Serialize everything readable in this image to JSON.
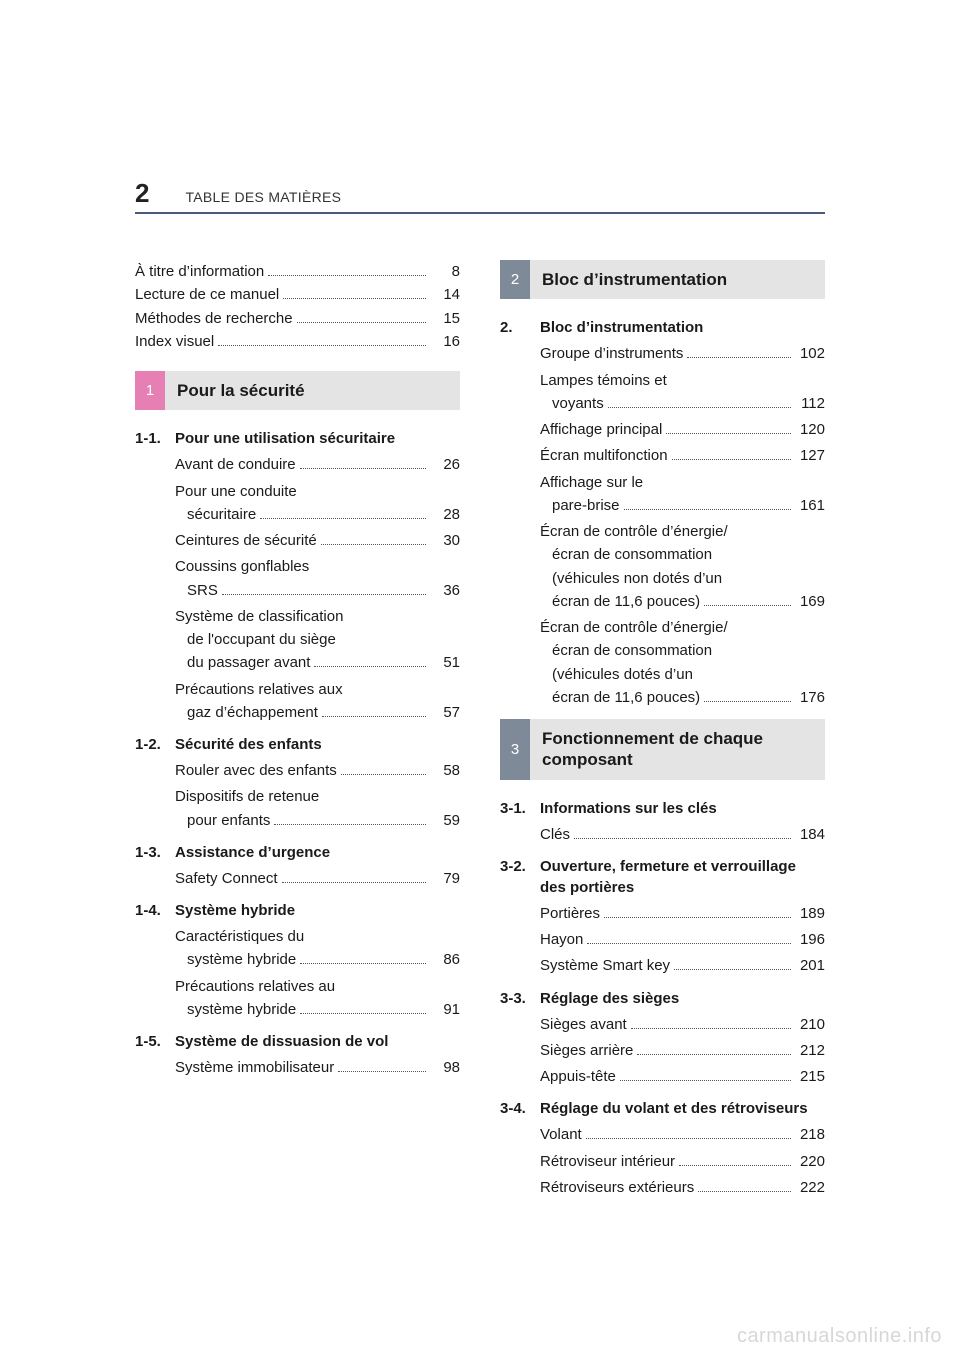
{
  "page_number": "2",
  "header_title": "TABLE DES MATIÈRES",
  "watermark": "carmanualsonline.info",
  "colors": {
    "rule": "#4b5c7b",
    "part1_tab": "#e67fb3",
    "part_other_tab": "#7f8a98",
    "part_bg": "#e4e4e4",
    "watermark": "#d7d7d7"
  },
  "intro_lines": [
    {
      "label": "À titre d’information",
      "page": "8"
    },
    {
      "label": "Lecture de ce manuel",
      "page": "14"
    },
    {
      "label": "Méthodes de recherche",
      "page": "15"
    },
    {
      "label": "Index visuel",
      "page": "16"
    }
  ],
  "left_parts": [
    {
      "num": "1",
      "title": "Pour la sécurité",
      "tab_class": "c1",
      "sections": [
        {
          "num": "1-1.",
          "title": "Pour une utilisation sécuritaire",
          "entries": [
            {
              "lines": [
                "Avant de conduire"
              ],
              "page": "26"
            },
            {
              "lines": [
                "Pour une conduite",
                "sécuritaire"
              ],
              "page": "28"
            },
            {
              "lines": [
                "Ceintures de sécurité"
              ],
              "page": "30"
            },
            {
              "lines": [
                "Coussins gonflables",
                "SRS"
              ],
              "page": "36"
            },
            {
              "lines": [
                "Système de classification",
                "de l'occupant du siège",
                "du passager avant"
              ],
              "page": "51"
            },
            {
              "lines": [
                "Précautions relatives aux",
                "gaz d’échappement"
              ],
              "page": "57"
            }
          ]
        },
        {
          "num": "1-2.",
          "title": "Sécurité des enfants",
          "entries": [
            {
              "lines": [
                "Rouler avec des enfants"
              ],
              "page": "58"
            },
            {
              "lines": [
                "Dispositifs de retenue",
                "pour enfants"
              ],
              "page": "59"
            }
          ]
        },
        {
          "num": "1-3.",
          "title": "Assistance d’urgence",
          "entries": [
            {
              "lines": [
                "Safety Connect"
              ],
              "page": "79"
            }
          ]
        },
        {
          "num": "1-4.",
          "title": "Système hybride",
          "entries": [
            {
              "lines": [
                "Caractéristiques du",
                "système hybride"
              ],
              "page": "86"
            },
            {
              "lines": [
                "Précautions relatives au",
                "système hybride"
              ],
              "page": "91"
            }
          ]
        },
        {
          "num": "1-5.",
          "title": "Système de dissuasion de vol",
          "entries": [
            {
              "lines": [
                "Système immobilisateur"
              ],
              "page": "98"
            }
          ]
        }
      ]
    }
  ],
  "right_parts": [
    {
      "num": "2",
      "title": "Bloc d’instrumentation",
      "tab_class": "c2",
      "sections": [
        {
          "num": "2.",
          "title": "Bloc d’instrumentation",
          "entries": [
            {
              "lines": [
                "Groupe d’instruments"
              ],
              "page": "102"
            },
            {
              "lines": [
                "Lampes témoins et",
                "voyants"
              ],
              "page": "112"
            },
            {
              "lines": [
                "Affichage principal"
              ],
              "page": "120"
            },
            {
              "lines": [
                "Écran multifonction"
              ],
              "page": "127"
            },
            {
              "lines": [
                "Affichage sur le",
                "pare-brise"
              ],
              "page": "161"
            },
            {
              "lines": [
                "Écran de contrôle d’énergie/",
                "écran de consommation",
                "(véhicules non dotés d’un",
                "écran de 11,6 pouces)"
              ],
              "page": "169"
            },
            {
              "lines": [
                "Écran de contrôle d’énergie/",
                "écran de consommation",
                "(véhicules dotés d’un",
                "écran de 11,6 pouces)"
              ],
              "page": "176"
            }
          ]
        }
      ]
    },
    {
      "num": "3",
      "title": "Fonctionnement de chaque composant",
      "tab_class": "c3",
      "sections": [
        {
          "num": "3-1.",
          "title": "Informations sur les clés",
          "entries": [
            {
              "lines": [
                "Clés"
              ],
              "page": "184"
            }
          ]
        },
        {
          "num": "3-2.",
          "title": "Ouverture, fermeture et verrouillage des portières",
          "entries": [
            {
              "lines": [
                "Portières"
              ],
              "page": "189"
            },
            {
              "lines": [
                "Hayon"
              ],
              "page": "196"
            },
            {
              "lines": [
                "Système Smart key"
              ],
              "page": "201"
            }
          ]
        },
        {
          "num": "3-3.",
          "title": "Réglage des sièges",
          "entries": [
            {
              "lines": [
                "Sièges avant"
              ],
              "page": "210"
            },
            {
              "lines": [
                "Sièges arrière"
              ],
              "page": "212"
            },
            {
              "lines": [
                "Appuis-tête"
              ],
              "page": "215"
            }
          ]
        },
        {
          "num": "3-4.",
          "title": "Réglage du volant et des rétroviseurs",
          "entries": [
            {
              "lines": [
                "Volant"
              ],
              "page": "218"
            },
            {
              "lines": [
                "Rétroviseur intérieur"
              ],
              "page": "220"
            },
            {
              "lines": [
                "Rétroviseurs extérieurs"
              ],
              "page": "222"
            }
          ]
        }
      ]
    }
  ]
}
